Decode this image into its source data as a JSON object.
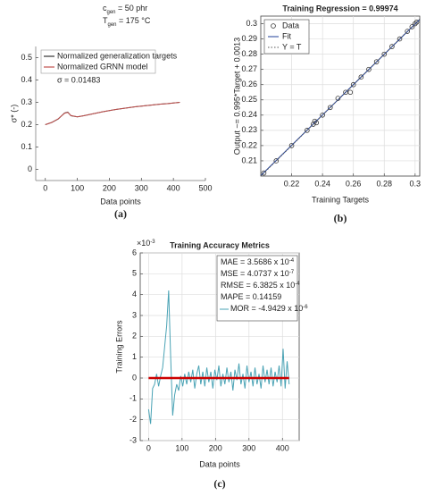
{
  "chart_data": [
    {
      "type": "line",
      "label": "(a)",
      "title_lines": [
        {
          "text": "c",
          "sub": "gen",
          "after": " = 50 phr"
        },
        {
          "text": "T",
          "sub": "gen",
          "after": " = 175 °C"
        }
      ],
      "xlabel": "Data points",
      "ylabel": "σ* (-)",
      "annotation": "σ = 0.01483",
      "xlim": [
        -30,
        500
      ],
      "ylim": [
        -0.05,
        0.55
      ],
      "xticks": [
        0,
        100,
        200,
        300,
        400,
        500
      ],
      "yticks": [
        0,
        0.1,
        0.2,
        0.3,
        0.4,
        0.5
      ],
      "grid": false,
      "series": [
        {
          "name": "Normalized generalization targets",
          "color": "#333333",
          "style": "line",
          "x": [
            0,
            20,
            40,
            60,
            70,
            80,
            100,
            120,
            140,
            160,
            180,
            200,
            220,
            240,
            260,
            280,
            300,
            320,
            340,
            360,
            380,
            400,
            420
          ],
          "values": [
            0.2,
            0.21,
            0.225,
            0.252,
            0.256,
            0.24,
            0.235,
            0.24,
            0.246,
            0.252,
            0.258,
            0.263,
            0.268,
            0.272,
            0.276,
            0.28,
            0.283,
            0.286,
            0.289,
            0.292,
            0.294,
            0.297,
            0.3
          ]
        },
        {
          "name": "Normalized GRNN model",
          "color": "#c0504d",
          "style": "line",
          "x": [
            0,
            20,
            40,
            60,
            70,
            80,
            100,
            120,
            140,
            160,
            180,
            200,
            220,
            240,
            260,
            280,
            300,
            320,
            340,
            360,
            380,
            400,
            420
          ],
          "values": [
            0.2,
            0.21,
            0.226,
            0.251,
            0.255,
            0.241,
            0.235,
            0.24,
            0.246,
            0.252,
            0.258,
            0.263,
            0.268,
            0.272,
            0.276,
            0.28,
            0.283,
            0.286,
            0.289,
            0.292,
            0.294,
            0.297,
            0.3
          ]
        }
      ]
    },
    {
      "type": "scatter",
      "label": "(b)",
      "title": "Training Regression = 0.99974",
      "xlabel": "Training Targets",
      "ylabel": "Output ~= 0.995*Target + 0.0013",
      "xlim": [
        0.2,
        0.303
      ],
      "ylim": [
        0.2,
        0.305
      ],
      "xticks": [
        0.22,
        0.24,
        0.26,
        0.28,
        0.3
      ],
      "yticks": [
        0.21,
        0.22,
        0.23,
        0.24,
        0.25,
        0.26,
        0.27,
        0.28,
        0.29,
        0.3
      ],
      "grid": true,
      "series": [
        {
          "name": "Data",
          "color": "#333333",
          "style": "markers",
          "x": [
            0.202,
            0.21,
            0.22,
            0.23,
            0.234,
            0.235,
            0.236,
            0.24,
            0.245,
            0.25,
            0.255,
            0.258,
            0.26,
            0.265,
            0.27,
            0.275,
            0.28,
            0.285,
            0.29,
            0.295,
            0.298,
            0.3,
            0.301
          ],
          "values": [
            0.202,
            0.21,
            0.22,
            0.23,
            0.234,
            0.236,
            0.235,
            0.24,
            0.245,
            0.251,
            0.255,
            0.255,
            0.26,
            0.265,
            0.27,
            0.275,
            0.28,
            0.285,
            0.29,
            0.295,
            0.298,
            0.3,
            0.301
          ]
        },
        {
          "name": "Fit",
          "color": "#1f3f99",
          "style": "line",
          "x": [
            0.2,
            0.303
          ],
          "values": [
            0.2003,
            0.3028
          ]
        },
        {
          "name": "Y = T",
          "color": "#555555",
          "style": "line",
          "dash": "dotted",
          "x": [
            0.2,
            0.303
          ],
          "values": [
            0.2,
            0.303
          ]
        }
      ]
    },
    {
      "type": "line",
      "label": "(c)",
      "title": "Training Accuracy Metrics",
      "y_multiplier": {
        "text": "×10",
        "sup": "-3"
      },
      "xlabel": "Data points",
      "ylabel": "Training Errors",
      "xlim": [
        -25,
        450
      ],
      "ylim": [
        -3,
        6
      ],
      "xticks": [
        0,
        100,
        200,
        300,
        400
      ],
      "yticks": [
        -3,
        -2,
        -1,
        0,
        1,
        2,
        3,
        4,
        5,
        6
      ],
      "grid": true,
      "legend_entries": [
        {
          "text": "MAE = 3.5686 x 10",
          "sup": "-4"
        },
        {
          "text": "MSE = 4.0737 x 10",
          "sup": "-7"
        },
        {
          "text": "RMSE = 6.3825 x 10",
          "sup": "-4"
        },
        {
          "text": "MAPE = 0.14159"
        },
        {
          "text": "MOR = -4.9429 x 10",
          "sup": "-6"
        }
      ],
      "series": [
        {
          "color": "#4aa3b5",
          "style": "line",
          "x": [
            0,
            6,
            12,
            18,
            24,
            30,
            36,
            42,
            48,
            54,
            60,
            66,
            72,
            78,
            84,
            90,
            96,
            102,
            108,
            114,
            120,
            126,
            132,
            138,
            144,
            150,
            156,
            162,
            168,
            174,
            180,
            186,
            192,
            198,
            204,
            210,
            216,
            222,
            228,
            234,
            240,
            246,
            252,
            258,
            264,
            270,
            276,
            282,
            288,
            294,
            300,
            306,
            312,
            318,
            324,
            330,
            336,
            342,
            348,
            354,
            360,
            366,
            372,
            378,
            384,
            390,
            396,
            402,
            408,
            414,
            420
          ],
          "values": [
            -1.5,
            -2.2,
            -0.5,
            -0.3,
            0.2,
            -0.4,
            0.1,
            0.5,
            1.5,
            2.5,
            4.2,
            1.0,
            -1.8,
            -0.8,
            -0.3,
            -0.6,
            0.1,
            -0.4,
            0.2,
            -0.3,
            0.3,
            -0.2,
            0.4,
            -0.5,
            0.2,
            0.6,
            -0.3,
            0.3,
            -0.4,
            0.5,
            -0.2,
            0.3,
            -0.5,
            0.4,
            -0.1,
            0.6,
            -0.4,
            0.2,
            -0.3,
            0.5,
            -0.2,
            0.3,
            -0.6,
            0.4,
            -0.1,
            0.7,
            -0.3,
            0.2,
            -0.5,
            0.6,
            -0.2,
            0.3,
            -0.4,
            0.5,
            -0.3,
            0.2,
            -0.5,
            0.6,
            -0.2,
            0.4,
            -0.3,
            0.5,
            -0.4,
            0.3,
            -0.2,
            0.6,
            -0.4,
            1.4,
            -0.5,
            0.8,
            -0.3
          ]
        },
        {
          "color": "#cc0000",
          "style": "line",
          "width": 2.5,
          "x": [
            0,
            420
          ],
          "values": [
            0,
            0
          ]
        }
      ]
    }
  ]
}
